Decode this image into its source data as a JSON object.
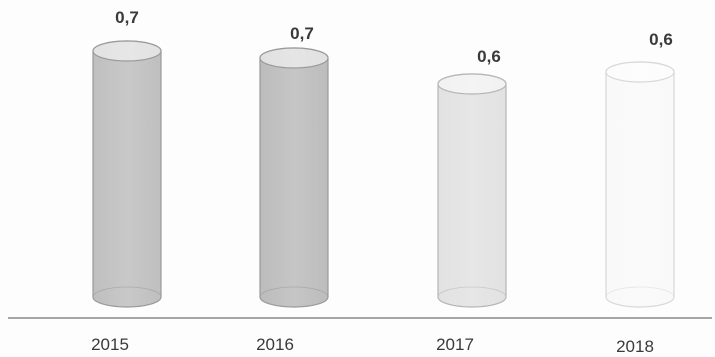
{
  "chart_data": {
    "type": "bar",
    "categories": [
      "2015",
      "2016",
      "2017",
      "2018"
    ],
    "values": [
      0.7,
      0.7,
      0.6,
      0.6
    ],
    "value_labels": [
      "0,7",
      "0,7",
      "0,6",
      "0,6"
    ],
    "ylim": [
      0,
      0.8
    ],
    "grid": false,
    "legend": "none",
    "bar_style": "cylinder",
    "colors": {
      "fills": [
        "#bfbfbf",
        "#bcbcbc",
        "#e2e2e2",
        "#f9f9f9"
      ],
      "edges": [
        "#9a9a9a",
        "#9a9a9a",
        "#b5b5b5",
        "#d8d8d8"
      ],
      "axis": "#8a8a8a",
      "text": "#3a3a3a"
    }
  }
}
